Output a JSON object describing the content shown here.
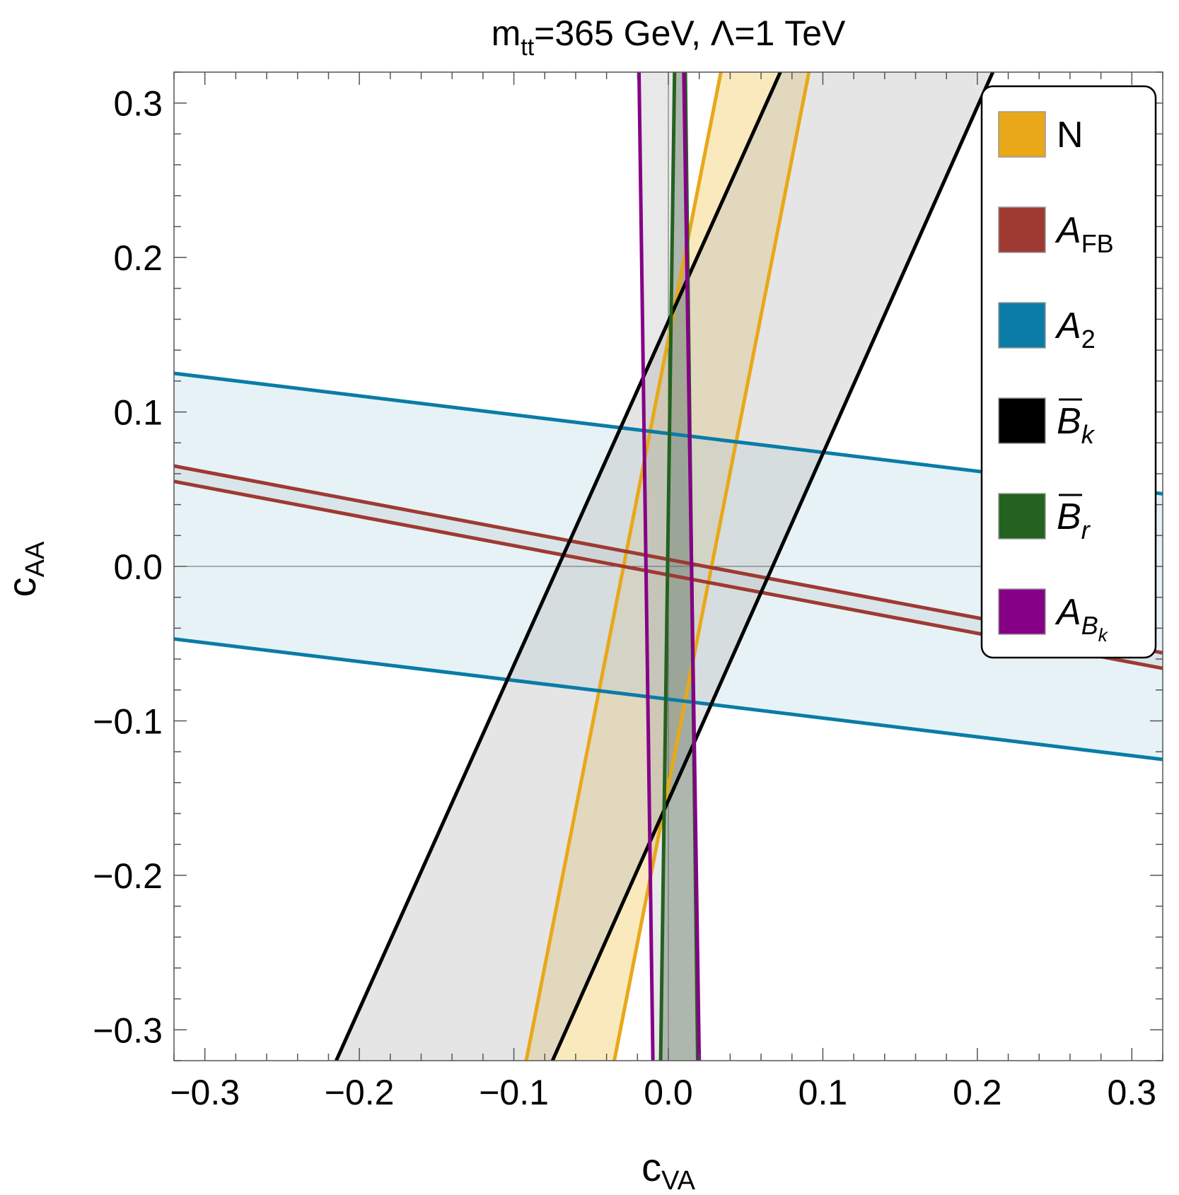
{
  "chart_data": {
    "type": "region",
    "title": "m_tt=365 GeV, Λ=1 TeV",
    "title_parts": {
      "m": "m",
      "m_sub": "tt",
      "rest": "=365 GeV, Λ=1 TeV"
    },
    "xlabel": {
      "base": "c",
      "sub": "VA"
    },
    "ylabel": {
      "base": "c",
      "sub": "AA"
    },
    "xlim": [
      -0.32,
      0.32
    ],
    "ylim": [
      -0.32,
      0.32
    ],
    "xticks": [
      -0.3,
      -0.2,
      -0.1,
      0.0,
      0.1,
      0.2,
      0.3
    ],
    "yticks": [
      -0.3,
      -0.2,
      -0.1,
      0.0,
      0.1,
      0.2,
      0.3
    ],
    "xtick_labels": [
      "−0.3",
      "−0.2",
      "−0.1",
      "0.0",
      "0.1",
      "0.2",
      "0.3"
    ],
    "ytick_labels": [
      "−0.3",
      "−0.2",
      "−0.1",
      "0.0",
      "0.1",
      "0.2",
      "0.3"
    ],
    "legend_position": "top-right",
    "series": [
      {
        "name": "N",
        "label_base": "N",
        "label_sub": "",
        "label_italic": false,
        "overbar": false,
        "color": "#E8A818",
        "fill": "#F7CF6E",
        "fill_opacity": 0.45,
        "lines": [
          [
            [
              -0.092,
              -0.32
            ],
            [
              0.034,
              0.32
            ]
          ],
          [
            [
              -0.035,
              -0.32
            ],
            [
              0.091,
              0.32
            ]
          ]
        ]
      },
      {
        "name": "A_FB",
        "label_base": "A",
        "label_sub": "FB",
        "label_italic": true,
        "overbar": false,
        "color": "#9E3A32",
        "fill": "#D9D9D9",
        "fill_opacity": 0.5,
        "lines": [
          [
            [
              -0.32,
              0.065
            ],
            [
              0.32,
              -0.056
            ]
          ],
          [
            [
              -0.32,
              0.055
            ],
            [
              0.32,
              -0.066
            ]
          ]
        ]
      },
      {
        "name": "A_2",
        "label_base": "A",
        "label_sub": "2",
        "label_italic": true,
        "overbar": false,
        "color": "#0A7CA6",
        "fill": "#B6DAE6",
        "fill_opacity": 0.35,
        "lines": [
          [
            [
              -0.32,
              0.125
            ],
            [
              0.32,
              0.047
            ]
          ],
          [
            [
              -0.32,
              -0.047
            ],
            [
              0.32,
              -0.125
            ]
          ]
        ]
      },
      {
        "name": "B̄_k",
        "label_base": "B",
        "label_sub": "k",
        "label_italic": true,
        "overbar": true,
        "color": "#000000",
        "fill": "#BDBDBD",
        "fill_opacity": 0.4,
        "lines": [
          [
            [
              -0.215,
              -0.32
            ],
            [
              0.0725,
              0.32
            ]
          ],
          [
            [
              -0.075,
              -0.32
            ],
            [
              0.21,
              0.32
            ]
          ]
        ]
      },
      {
        "name": "B̄_r",
        "label_base": "B",
        "label_sub": "r",
        "label_italic": true,
        "overbar": true,
        "color": "#23621F",
        "fill": "#6E8670",
        "fill_opacity": 0.5,
        "lines": [
          [
            [
              -0.005,
              -0.32
            ],
            [
              0.004,
              0.32
            ]
          ],
          [
            [
              0.019,
              -0.32
            ],
            [
              0.011,
              0.32
            ]
          ]
        ]
      },
      {
        "name": "A_Bk",
        "label_base": "A",
        "label_sub": "B",
        "label_subsub": "k",
        "label_italic": true,
        "overbar": false,
        "color": "#860087",
        "fill": "#8A8A8A",
        "fill_opacity": 0.2,
        "lines": [
          [
            [
              -0.01,
              -0.32
            ],
            [
              -0.019,
              0.32
            ]
          ],
          [
            [
              0.02,
              -0.32
            ],
            [
              0.01,
              0.32
            ]
          ]
        ]
      }
    ]
  }
}
